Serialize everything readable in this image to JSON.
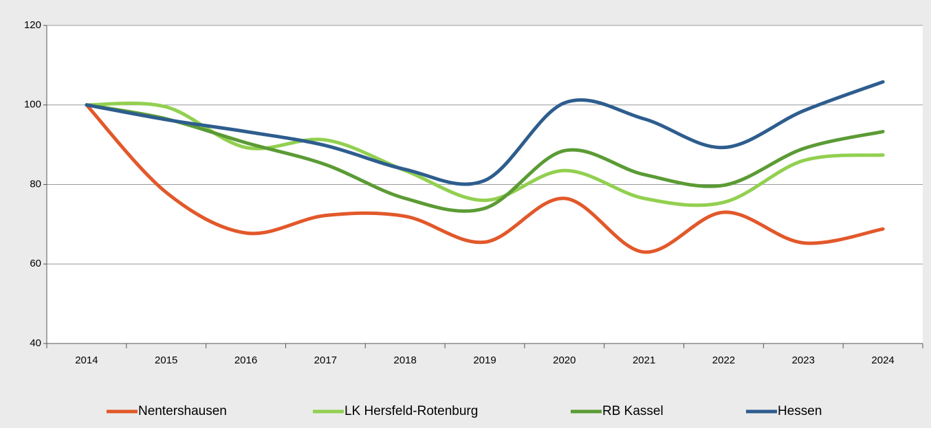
{
  "chart_data": {
    "type": "line",
    "categories": [
      "2014",
      "2015",
      "2016",
      "2017",
      "2018",
      "2019",
      "2020",
      "2021",
      "2022",
      "2023",
      "2024"
    ],
    "series": [
      {
        "name": "Nentershausen",
        "color": "#e2582a",
        "values": [
          100,
          78,
          67.8,
          72.2,
          72,
          65.5,
          76.5,
          63,
          73,
          65.3,
          68.8
        ]
      },
      {
        "name": "LK Hersfeld-Rotenburg",
        "color": "#92d050",
        "values": [
          100,
          99.5,
          89.3,
          91.2,
          83.5,
          76,
          83.5,
          76.5,
          75.5,
          86,
          87.4
        ]
      },
      {
        "name": "RB Kassel",
        "color": "#5b9b35",
        "values": [
          100,
          96.5,
          90.5,
          85,
          76.5,
          74,
          88.5,
          82.5,
          79.8,
          89,
          93.3
        ]
      },
      {
        "name": "Hessen",
        "color": "#2e5d8e",
        "values": [
          100,
          96.3,
          93.3,
          89.8,
          83.8,
          81,
          100.5,
          96.5,
          89.3,
          98.5,
          105.8
        ]
      }
    ],
    "ylim": [
      40,
      120
    ],
    "yticks": [
      40,
      60,
      80,
      100,
      120
    ],
    "grid": true,
    "smooth": true,
    "legend": "bottom"
  }
}
